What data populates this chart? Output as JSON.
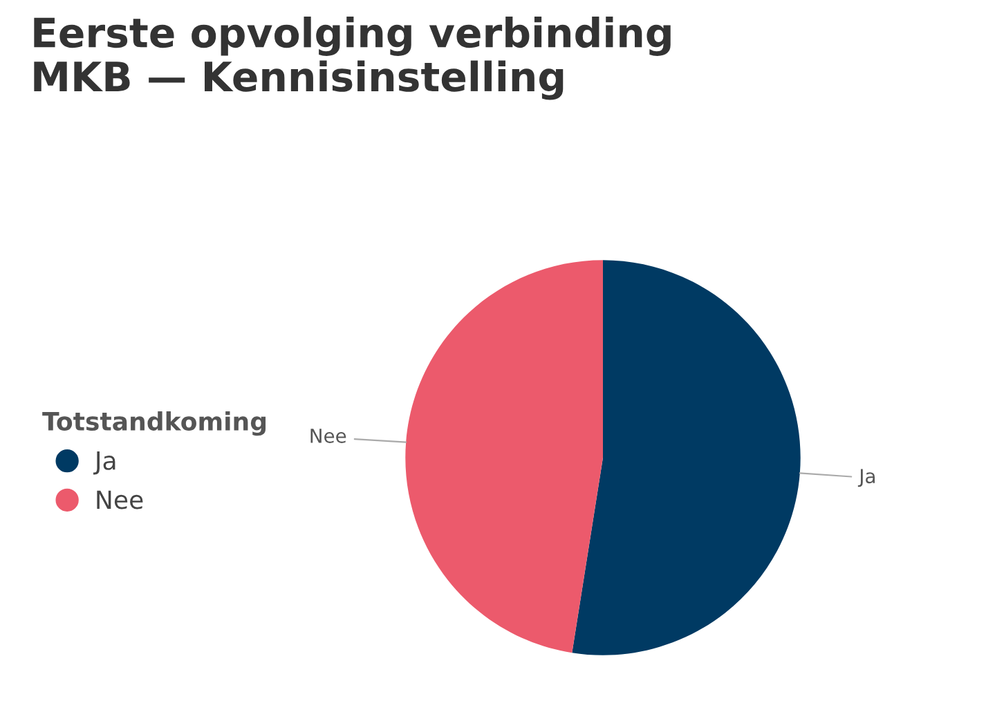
{
  "chart_data": {
    "type": "pie",
    "title": "Eerste opvolging verbinding\nMKB — Kennisinstelling",
    "legend_title": "Totstandkoming",
    "legend": "left",
    "categories": [
      "Ja",
      "Nee"
    ],
    "values": [
      52.5,
      47.5
    ],
    "colors": [
      "#003a63",
      "#ec5a6c"
    ]
  }
}
